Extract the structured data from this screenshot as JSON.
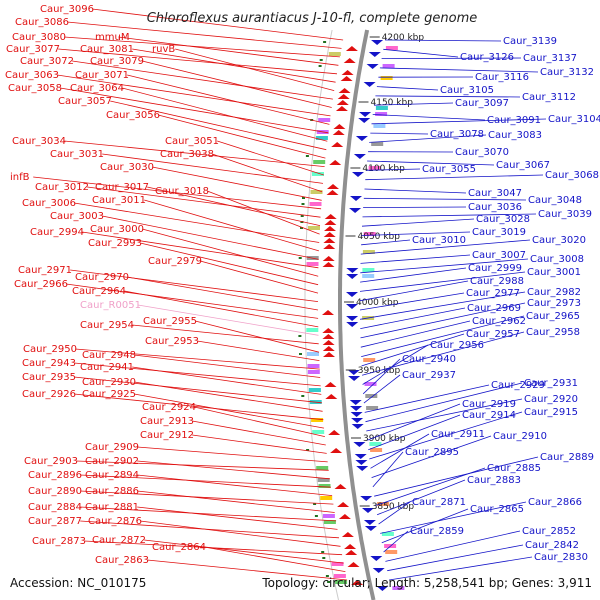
{
  "title": "Chloroflexus aurantiacus J-10-fl, complete genome",
  "accession": "Accession: NC_010175",
  "topology": "Topology: circular; Length: 5,258,541 bp; Genes: 3,911",
  "colors": {
    "forward": "#e01010",
    "reverse": "#1414c8",
    "rna": "#f0a0c8",
    "tick": "#207020",
    "backbone": "#909090"
  },
  "kbp_marks": [
    "4200 kbp",
    "4150 kbp",
    "4100 kbp",
    "4050 kbp",
    "4000 kbp",
    "3950 kbp",
    "3900 kbp",
    "3850 kbp"
  ],
  "left_labels": [
    "Caur_3096",
    "Caur_3086",
    "Caur_3080",
    "mmuM",
    "Caur_3077",
    "Caur_3081",
    "ruvB",
    "Caur_3072",
    "Caur_3079",
    "Caur_3063",
    "Caur_3071",
    "Caur_3058",
    "Caur_3064",
    "Caur_3057",
    "Caur_3056",
    "Caur_3034",
    "Caur_3051",
    "Caur_3031",
    "Caur_3038",
    "Caur_3030",
    "infB",
    "Caur_3012",
    "Caur_3017",
    "Caur_3018",
    "Caur_3006",
    "Caur_3011",
    "Caur_3003",
    "Caur_2994",
    "Caur_3000",
    "Caur_2993",
    "Caur_2979",
    "Caur_2971",
    "Caur_2970",
    "Caur_2966",
    "Caur_2964",
    "Caur_R0051",
    "Caur_2954",
    "Caur_2955",
    "Caur_2953",
    "Caur_2950",
    "Caur_2948",
    "Caur_2943",
    "Caur_2941",
    "Caur_2935",
    "Caur_2930",
    "Caur_2926",
    "Caur_2925",
    "Caur_2924",
    "Caur_2913",
    "Caur_2912",
    "Caur_2909",
    "Caur_2903",
    "Caur_2902",
    "Caur_2896",
    "Caur_2894",
    "Caur_2890",
    "Caur_2886",
    "Caur_2884",
    "Caur_2881",
    "Caur_2877",
    "Caur_2876",
    "Caur_2873",
    "Caur_2872",
    "Caur_2864",
    "Caur_2863"
  ],
  "right_labels": [
    "Caur_3139",
    "Caur_3126",
    "Caur_3137",
    "Caur_3132",
    "Caur_3116",
    "Caur_3105",
    "Caur_3112",
    "Caur_3097",
    "Caur_3091",
    "Caur_3104",
    "Caur_3078",
    "Caur_3083",
    "Caur_3070",
    "Caur_3067",
    "Caur_3055",
    "Caur_3068",
    "Caur_3047",
    "Caur_3048",
    "Caur_3036",
    "Caur_3039",
    "Caur_3028",
    "Caur_3019",
    "Caur_3010",
    "Caur_3020",
    "Caur_3007",
    "Caur_3008",
    "Caur_2999",
    "Caur_3001",
    "Caur_2988",
    "Caur_2977",
    "Caur_2982",
    "Caur_2969",
    "Caur_2973",
    "Caur_2962",
    "Caur_2965",
    "Caur_2957",
    "Caur_2958",
    "Caur_2956",
    "Caur_2940",
    "Caur_2937",
    "Caur_2929",
    "Caur_2931",
    "Caur_2920",
    "Caur_2919",
    "Caur_2914",
    "Caur_2915",
    "Caur_2911",
    "Caur_2910",
    "Caur_2895",
    "Caur_2889",
    "Caur_2885",
    "Caur_2883",
    "Caur_2871",
    "Caur_2866",
    "Caur_2865",
    "Caur_2859",
    "Caur_2852",
    "Caur_2842",
    "Caur_2830"
  ]
}
